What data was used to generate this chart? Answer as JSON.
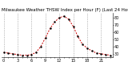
{
  "title": "Milwaukee Weather THSW Index per Hour (F) (Last 24 Hours)",
  "hours": [
    0,
    1,
    2,
    3,
    4,
    5,
    6,
    7,
    8,
    9,
    10,
    11,
    12,
    13,
    14,
    15,
    16,
    17,
    18,
    19,
    20,
    21,
    22,
    23
  ],
  "values": [
    32,
    31,
    30,
    29,
    28,
    28,
    29,
    32,
    40,
    52,
    65,
    74,
    80,
    82,
    78,
    68,
    54,
    43,
    38,
    34,
    31,
    30,
    29,
    28
  ],
  "line_color": "#cc0000",
  "marker_color": "#000000",
  "background_color": "#ffffff",
  "grid_color": "#888888",
  "title_color": "#000000",
  "ylim": [
    25,
    87
  ],
  "yticks": [
    30,
    40,
    50,
    60,
    70,
    80
  ],
  "xtick_major": [
    0,
    3,
    6,
    9,
    12,
    15,
    18,
    21
  ],
  "title_fontsize": 4.0,
  "axis_fontsize": 3.5
}
